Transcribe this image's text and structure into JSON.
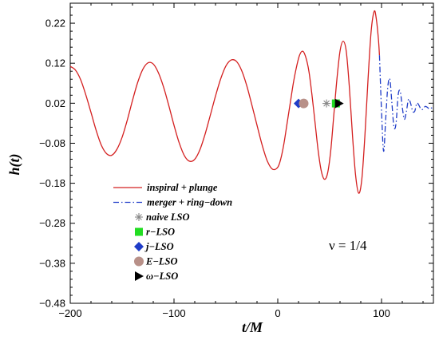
{
  "chart_data": {
    "type": "line",
    "xlabel": "t/M",
    "ylabel": "h(t)",
    "xlim": [
      -200,
      150
    ],
    "ylim": [
      -0.48,
      0.27
    ],
    "x_ticks": [
      -200,
      -100,
      0,
      100
    ],
    "y_ticks": [
      -0.48,
      -0.38,
      -0.28,
      -0.18,
      -0.08,
      0.02,
      0.12,
      0.22
    ],
    "x_tick_labels": [
      "−200",
      "−100",
      "0",
      "100"
    ],
    "y_tick_labels": [
      "−0.48",
      "−0.38",
      "−0.28",
      "−0.18",
      "−0.08",
      "0.02",
      "0.12",
      "0.22"
    ],
    "annotation": "ν = 1/4",
    "series": [
      {
        "name": "inspiral + plunge",
        "color": "#d42020",
        "style": "solid",
        "x": [
          -200,
          -195,
          -190,
          -185,
          -180,
          -175,
          -170,
          -165,
          -160,
          -155,
          -150,
          -145,
          -140,
          -135,
          -130,
          -125,
          -120,
          -115,
          -110,
          -105,
          -100,
          -95,
          -90,
          -85,
          -80,
          -75,
          -70,
          -65,
          -60,
          -55,
          -50,
          -45,
          -40,
          -35,
          -30,
          -25,
          -20,
          -15,
          -10,
          -5,
          0,
          3,
          6,
          9,
          12,
          15,
          18,
          21,
          24,
          27,
          30,
          33,
          36,
          39,
          42,
          45,
          48,
          51,
          54,
          57,
          60,
          63,
          66,
          69,
          72,
          75,
          78,
          81,
          84,
          87,
          90,
          93,
          95,
          97,
          98
        ],
        "y": [
          0.112,
          0.103,
          0.079,
          0.041,
          -0.003,
          -0.048,
          -0.085,
          -0.106,
          -0.11,
          -0.095,
          -0.065,
          -0.022,
          0.027,
          0.072,
          0.105,
          0.121,
          0.118,
          0.096,
          0.06,
          0.014,
          -0.035,
          -0.079,
          -0.111,
          -0.125,
          -0.12,
          -0.096,
          -0.057,
          -0.01,
          0.038,
          0.081,
          0.113,
          0.128,
          0.125,
          0.103,
          0.065,
          0.016,
          -0.035,
          -0.085,
          -0.125,
          -0.145,
          -0.14,
          -0.118,
          -0.08,
          -0.03,
          0.02,
          0.07,
          0.11,
          0.14,
          0.15,
          0.135,
          0.1,
          0.04,
          -0.03,
          -0.1,
          -0.15,
          -0.17,
          -0.155,
          -0.1,
          -0.01,
          0.08,
          0.15,
          0.175,
          0.15,
          0.06,
          -0.06,
          -0.16,
          -0.205,
          -0.17,
          -0.06,
          0.08,
          0.2,
          0.25,
          0.23,
          0.18,
          0.14
        ]
      },
      {
        "name": "merger + ring−down",
        "color": "#1f3cc8",
        "style": "dashdot",
        "x": [
          98,
          100,
          102,
          104,
          106,
          108,
          110,
          112,
          114,
          116,
          118,
          120,
          122,
          124,
          126,
          128,
          130,
          132,
          134,
          136,
          138,
          140,
          142,
          144,
          146,
          148,
          150
        ],
        "y": [
          0.14,
          0.0,
          -0.1,
          -0.02,
          0.06,
          0.08,
          0.02,
          -0.04,
          -0.03,
          0.04,
          0.05,
          0.01,
          -0.02,
          0.0,
          0.03,
          0.02,
          0.0,
          0.0,
          0.02,
          0.015,
          0.005,
          0.005,
          0.012,
          0.01,
          0.006,
          0.008,
          0.01
        ]
      }
    ],
    "markers": [
      {
        "name": "naive LSO",
        "x": 47,
        "y": 0.0195,
        "shape": "asterisk",
        "color": "#888888"
      },
      {
        "name": "r−LSO",
        "x": 56,
        "y": 0.0195,
        "shape": "square",
        "color": "#22dd22"
      },
      {
        "name": "j−LSO",
        "x": 20,
        "y": 0.0195,
        "shape": "diamond",
        "color": "#1f3cc8"
      },
      {
        "name": "E−LSO",
        "x": 25,
        "y": 0.0195,
        "shape": "circle",
        "color": "#b89088"
      },
      {
        "name": "ω−LSO",
        "x": 59,
        "y": 0.0195,
        "shape": "triangle-right",
        "color": "#000000"
      }
    ],
    "legend": {
      "position": "lower-left",
      "entries": [
        {
          "label": "inspiral + plunge",
          "type": "line",
          "color": "#d42020",
          "style": "solid"
        },
        {
          "label": "merger + ring−down",
          "type": "line",
          "color": "#1f3cc8",
          "style": "dashdot"
        },
        {
          "label": "naive LSO",
          "type": "marker",
          "shape": "asterisk",
          "color": "#888888"
        },
        {
          "label": "r−LSO",
          "type": "marker",
          "shape": "square",
          "color": "#22dd22"
        },
        {
          "label": "j−LSO",
          "type": "marker",
          "shape": "diamond",
          "color": "#1f3cc8"
        },
        {
          "label": "E−LSO",
          "type": "marker",
          "shape": "circle",
          "color": "#b89088"
        },
        {
          "label": "ω−LSO",
          "type": "marker",
          "shape": "triangle-right",
          "color": "#000000"
        }
      ]
    }
  }
}
